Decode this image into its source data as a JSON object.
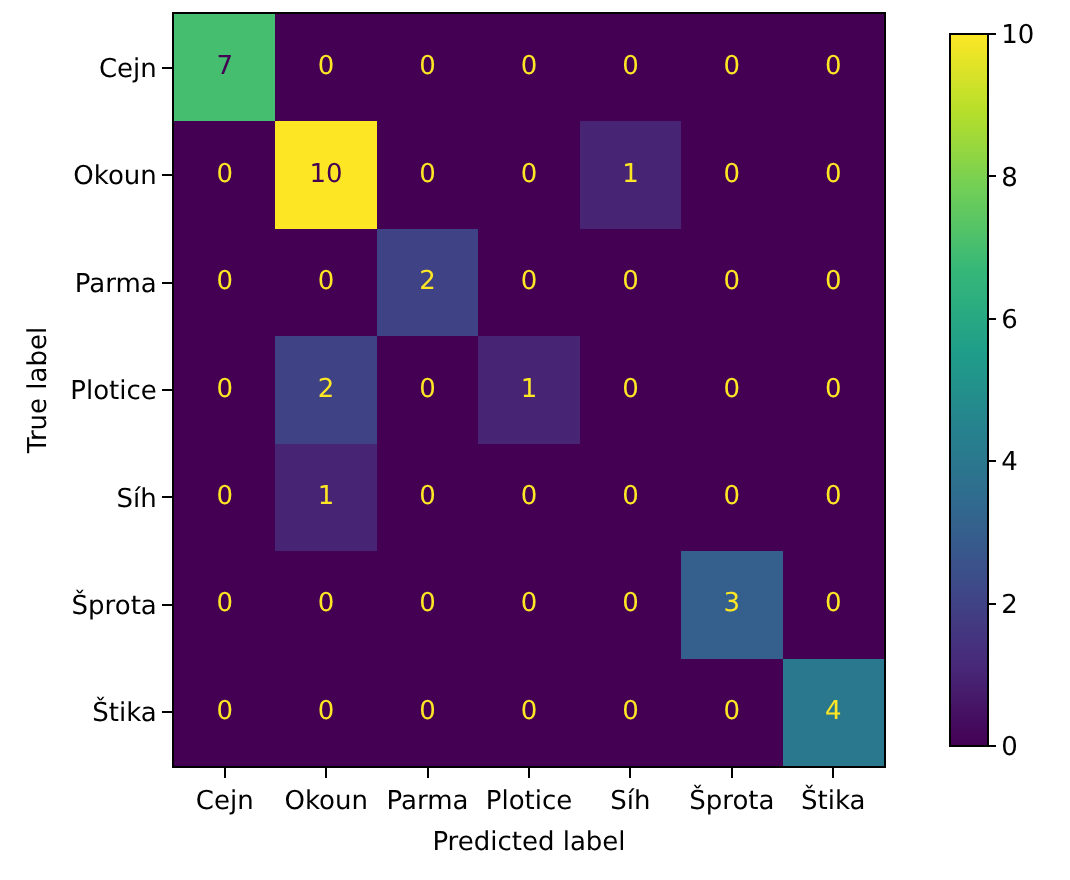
{
  "chart_data": {
    "type": "heatmap",
    "categories": [
      "Cejn",
      "Okoun",
      "Parma",
      "Plotice",
      "Síh",
      "Šprota",
      "Štika"
    ],
    "y_categories": [
      "Cejn",
      "Okoun",
      "Parma",
      "Plotice",
      "Síh",
      "Šprota",
      "Štika"
    ],
    "cells": [
      [
        7,
        0,
        0,
        0,
        0,
        0,
        0
      ],
      [
        0,
        10,
        0,
        0,
        1,
        0,
        0
      ],
      [
        0,
        0,
        2,
        0,
        0,
        0,
        0
      ],
      [
        0,
        2,
        0,
        1,
        0,
        0,
        0
      ],
      [
        0,
        1,
        0,
        0,
        0,
        0,
        0
      ],
      [
        0,
        0,
        0,
        0,
        0,
        3,
        0
      ],
      [
        0,
        0,
        0,
        0,
        0,
        0,
        4
      ]
    ],
    "clim": [
      0,
      10
    ],
    "cticks": [
      0,
      2,
      4,
      6,
      8,
      10
    ],
    "xlabel": "Predicted label",
    "ylabel": "True label",
    "data_labels": true
  }
}
